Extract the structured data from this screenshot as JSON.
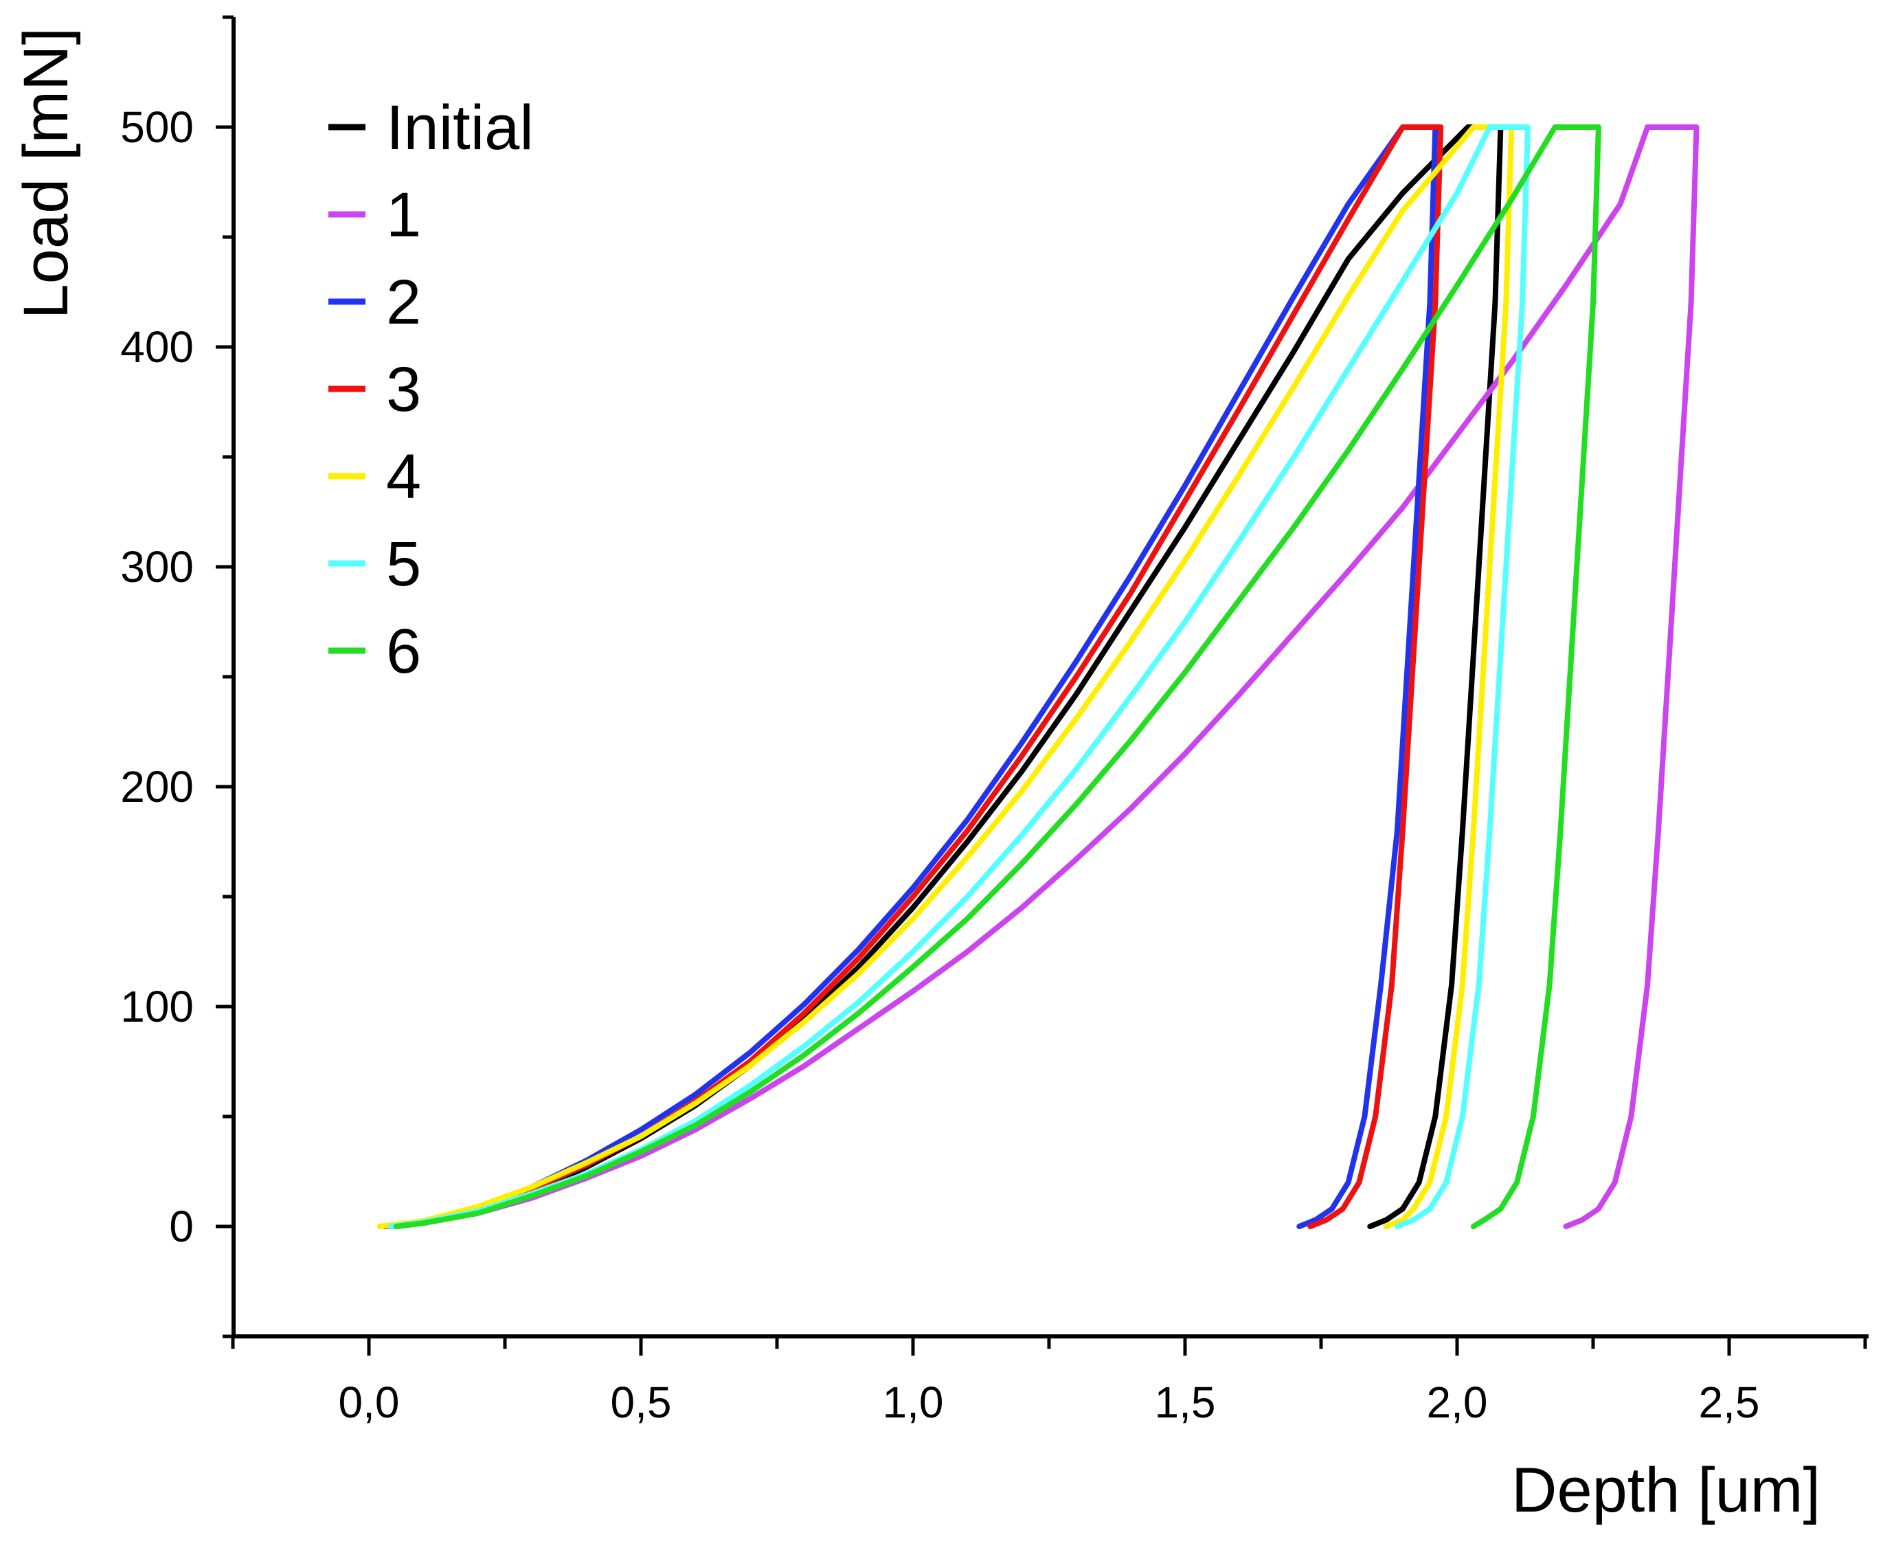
{
  "chart_data": {
    "type": "line",
    "xlabel": "Depth [um]",
    "ylabel": "Load [mN]",
    "xlim": [
      -0.25,
      2.75
    ],
    "ylim": [
      -50,
      550
    ],
    "x_ticks": [
      0.0,
      0.5,
      1.0,
      1.5,
      2.0,
      2.5
    ],
    "x_tick_labels": [
      "0,0",
      "0,5",
      "1,0",
      "1,5",
      "2,0",
      "2,5"
    ],
    "x_minor_ticks": [
      -0.25,
      0.25,
      0.75,
      1.25,
      1.75,
      2.25,
      2.75
    ],
    "y_ticks": [
      0,
      100,
      200,
      300,
      400,
      500
    ],
    "y_tick_labels": [
      "0",
      "100",
      "200",
      "300",
      "400",
      "500"
    ],
    "y_minor_ticks": [
      -50,
      50,
      150,
      250,
      350,
      450,
      550
    ],
    "grid": false,
    "legend_position": "top-left",
    "series": [
      {
        "name": "Initial",
        "color": "#000000",
        "loading": [
          [
            0.04,
            0
          ],
          [
            0.1,
            1.5
          ],
          [
            0.2,
            7
          ],
          [
            0.3,
            16
          ],
          [
            0.4,
            27
          ],
          [
            0.5,
            40
          ],
          [
            0.6,
            55
          ],
          [
            0.7,
            73
          ],
          [
            0.8,
            94
          ],
          [
            0.9,
            118
          ],
          [
            1.0,
            145
          ],
          [
            1.1,
            175
          ],
          [
            1.2,
            207
          ],
          [
            1.3,
            242
          ],
          [
            1.4,
            280
          ],
          [
            1.5,
            318
          ],
          [
            1.6,
            358
          ],
          [
            1.7,
            398
          ],
          [
            1.8,
            440
          ],
          [
            1.9,
            470
          ],
          [
            2.02,
            500
          ]
        ],
        "hold": [
          [
            2.02,
            500
          ],
          [
            2.08,
            500
          ]
        ],
        "unloading": [
          [
            2.08,
            500
          ],
          [
            2.07,
            420
          ],
          [
            2.05,
            340
          ],
          [
            2.03,
            260
          ],
          [
            2.01,
            180
          ],
          [
            1.99,
            110
          ],
          [
            1.96,
            50
          ],
          [
            1.93,
            20
          ],
          [
            1.9,
            8
          ],
          [
            1.87,
            3
          ],
          [
            1.84,
            0
          ]
        ]
      },
      {
        "name": "1",
        "color": "#cc44ee",
        "loading": [
          [
            0.05,
            0
          ],
          [
            0.1,
            1.5
          ],
          [
            0.2,
            6
          ],
          [
            0.3,
            13
          ],
          [
            0.4,
            22
          ],
          [
            0.5,
            32
          ],
          [
            0.6,
            44
          ],
          [
            0.7,
            58
          ],
          [
            0.8,
            73
          ],
          [
            0.9,
            90
          ],
          [
            1.0,
            107
          ],
          [
            1.1,
            125
          ],
          [
            1.2,
            145
          ],
          [
            1.3,
            167
          ],
          [
            1.4,
            190
          ],
          [
            1.5,
            215
          ],
          [
            1.6,
            242
          ],
          [
            1.7,
            270
          ],
          [
            1.8,
            298
          ],
          [
            1.9,
            327
          ],
          [
            2.0,
            360
          ],
          [
            2.1,
            393
          ],
          [
            2.2,
            428
          ],
          [
            2.3,
            465
          ],
          [
            2.35,
            500
          ]
        ],
        "hold": [
          [
            2.35,
            500
          ],
          [
            2.44,
            500
          ]
        ],
        "unloading": [
          [
            2.44,
            500
          ],
          [
            2.43,
            420
          ],
          [
            2.41,
            340
          ],
          [
            2.39,
            260
          ],
          [
            2.37,
            180
          ],
          [
            2.35,
            110
          ],
          [
            2.32,
            50
          ],
          [
            2.29,
            20
          ],
          [
            2.26,
            8
          ],
          [
            2.23,
            3
          ],
          [
            2.2,
            0
          ]
        ]
      },
      {
        "name": "2",
        "color": "#2233ee",
        "loading": [
          [
            0.03,
            0
          ],
          [
            0.1,
            2
          ],
          [
            0.2,
            8
          ],
          [
            0.3,
            18
          ],
          [
            0.4,
            30
          ],
          [
            0.5,
            44
          ],
          [
            0.6,
            60
          ],
          [
            0.7,
            79
          ],
          [
            0.8,
            101
          ],
          [
            0.9,
            126
          ],
          [
            1.0,
            154
          ],
          [
            1.1,
            185
          ],
          [
            1.2,
            220
          ],
          [
            1.3,
            257
          ],
          [
            1.4,
            296
          ],
          [
            1.5,
            337
          ],
          [
            1.6,
            380
          ],
          [
            1.7,
            423
          ],
          [
            1.8,
            465
          ],
          [
            1.9,
            500
          ]
        ],
        "hold": [
          [
            1.9,
            500
          ],
          [
            1.96,
            500
          ]
        ],
        "unloading": [
          [
            1.96,
            500
          ],
          [
            1.95,
            420
          ],
          [
            1.93,
            340
          ],
          [
            1.91,
            260
          ],
          [
            1.89,
            180
          ],
          [
            1.86,
            110
          ],
          [
            1.83,
            50
          ],
          [
            1.8,
            20
          ],
          [
            1.77,
            8
          ],
          [
            1.74,
            3
          ],
          [
            1.71,
            0
          ]
        ]
      },
      {
        "name": "3",
        "color": "#ee1111",
        "loading": [
          [
            0.03,
            0
          ],
          [
            0.1,
            2
          ],
          [
            0.2,
            8
          ],
          [
            0.3,
            17
          ],
          [
            0.4,
            28
          ],
          [
            0.5,
            41
          ],
          [
            0.6,
            57
          ],
          [
            0.7,
            75
          ],
          [
            0.8,
            97
          ],
          [
            0.9,
            122
          ],
          [
            1.0,
            150
          ],
          [
            1.1,
            180
          ],
          [
            1.2,
            214
          ],
          [
            1.3,
            250
          ],
          [
            1.4,
            288
          ],
          [
            1.5,
            330
          ],
          [
            1.6,
            372
          ],
          [
            1.7,
            415
          ],
          [
            1.8,
            458
          ],
          [
            1.9,
            500
          ]
        ],
        "hold": [
          [
            1.9,
            500
          ],
          [
            1.97,
            500
          ]
        ],
        "unloading": [
          [
            1.97,
            500
          ],
          [
            1.96,
            420
          ],
          [
            1.94,
            340
          ],
          [
            1.92,
            260
          ],
          [
            1.9,
            180
          ],
          [
            1.88,
            110
          ],
          [
            1.85,
            50
          ],
          [
            1.82,
            20
          ],
          [
            1.79,
            8
          ],
          [
            1.76,
            3
          ],
          [
            1.73,
            0
          ]
        ]
      },
      {
        "name": "4",
        "color": "#ffee00",
        "loading": [
          [
            0.02,
            0
          ],
          [
            0.1,
            2.5
          ],
          [
            0.2,
            9
          ],
          [
            0.3,
            18
          ],
          [
            0.4,
            29
          ],
          [
            0.5,
            41
          ],
          [
            0.6,
            56
          ],
          [
            0.7,
            73
          ],
          [
            0.8,
            93
          ],
          [
            0.9,
            115
          ],
          [
            1.0,
            140
          ],
          [
            1.1,
            168
          ],
          [
            1.2,
            198
          ],
          [
            1.3,
            231
          ],
          [
            1.4,
            266
          ],
          [
            1.5,
            303
          ],
          [
            1.6,
            342
          ],
          [
            1.7,
            382
          ],
          [
            1.8,
            423
          ],
          [
            1.9,
            462
          ],
          [
            2.03,
            500
          ]
        ],
        "hold": [
          [
            2.03,
            500
          ],
          [
            2.1,
            500
          ]
        ],
        "unloading": [
          [
            2.1,
            500
          ],
          [
            2.09,
            420
          ],
          [
            2.07,
            340
          ],
          [
            2.05,
            260
          ],
          [
            2.03,
            180
          ],
          [
            2.01,
            110
          ],
          [
            1.98,
            50
          ],
          [
            1.95,
            20
          ],
          [
            1.92,
            8
          ],
          [
            1.9,
            3
          ],
          [
            1.87,
            0
          ]
        ]
      },
      {
        "name": "5",
        "color": "#55ffff",
        "loading": [
          [
            0.04,
            0
          ],
          [
            0.1,
            2
          ],
          [
            0.2,
            7
          ],
          [
            0.3,
            15
          ],
          [
            0.4,
            24
          ],
          [
            0.5,
            35
          ],
          [
            0.6,
            48
          ],
          [
            0.7,
            64
          ],
          [
            0.8,
            82
          ],
          [
            0.9,
            102
          ],
          [
            1.0,
            125
          ],
          [
            1.1,
            150
          ],
          [
            1.2,
            178
          ],
          [
            1.3,
            208
          ],
          [
            1.4,
            241
          ],
          [
            1.5,
            275
          ],
          [
            1.6,
            312
          ],
          [
            1.7,
            350
          ],
          [
            1.8,
            390
          ],
          [
            1.9,
            430
          ],
          [
            2.0,
            470
          ],
          [
            2.06,
            500
          ]
        ],
        "hold": [
          [
            2.06,
            500
          ],
          [
            2.13,
            500
          ]
        ],
        "unloading": [
          [
            2.13,
            500
          ],
          [
            2.12,
            420
          ],
          [
            2.1,
            340
          ],
          [
            2.08,
            260
          ],
          [
            2.06,
            180
          ],
          [
            2.04,
            110
          ],
          [
            2.01,
            50
          ],
          [
            1.98,
            20
          ],
          [
            1.95,
            8
          ],
          [
            1.92,
            3
          ],
          [
            1.89,
            0
          ]
        ]
      },
      {
        "name": "6",
        "color": "#22dd22",
        "loading": [
          [
            0.05,
            0
          ],
          [
            0.1,
            1.5
          ],
          [
            0.2,
            6
          ],
          [
            0.3,
            14
          ],
          [
            0.4,
            23
          ],
          [
            0.5,
            34
          ],
          [
            0.6,
            46
          ],
          [
            0.7,
            61
          ],
          [
            0.8,
            78
          ],
          [
            0.9,
            97
          ],
          [
            1.0,
            118
          ],
          [
            1.1,
            140
          ],
          [
            1.2,
            165
          ],
          [
            1.3,
            192
          ],
          [
            1.4,
            221
          ],
          [
            1.5,
            252
          ],
          [
            1.6,
            285
          ],
          [
            1.7,
            318
          ],
          [
            1.8,
            353
          ],
          [
            1.9,
            390
          ],
          [
            2.0,
            428
          ],
          [
            2.1,
            467
          ],
          [
            2.18,
            500
          ]
        ],
        "hold": [
          [
            2.18,
            500
          ],
          [
            2.26,
            500
          ]
        ],
        "unloading": [
          [
            2.26,
            500
          ],
          [
            2.25,
            420
          ],
          [
            2.23,
            340
          ],
          [
            2.21,
            260
          ],
          [
            2.19,
            180
          ],
          [
            2.17,
            110
          ],
          [
            2.14,
            50
          ],
          [
            2.11,
            20
          ],
          [
            2.08,
            8
          ],
          [
            2.05,
            3
          ],
          [
            2.03,
            0
          ]
        ]
      }
    ]
  }
}
